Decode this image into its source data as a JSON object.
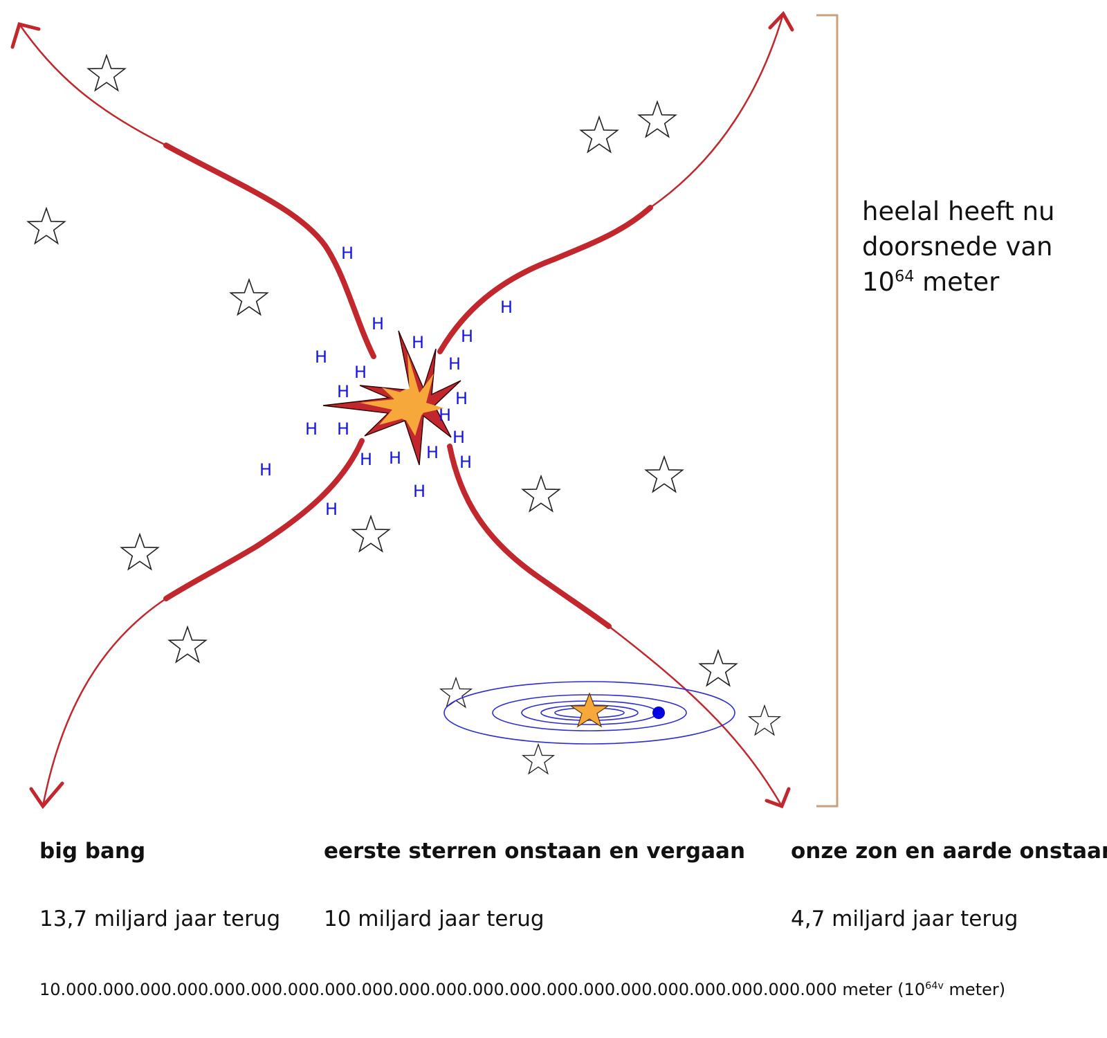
{
  "note": {
    "line1": "heelal heeft nu",
    "line2": "doorsnede van",
    "line3_base": "10",
    "line3_exp": "64",
    "line3_unit": " meter"
  },
  "stages": [
    {
      "title": "big bang",
      "time": "13,7 miljard jaar terug"
    },
    {
      "title": "eerste sterren onstaan en vergaan",
      "time": "10 miljard jaar terug"
    },
    {
      "title": "onze zon en aarde onstaan",
      "time": "4,7 miljard jaar terug"
    }
  ],
  "distance": {
    "number": "10.000.000.000.000.000.000.000.000.000.000.000.000.000.000.000.000.000.000.000.000.000",
    "unit_open": " meter (10",
    "exp": "64v",
    "unit_close": " meter)"
  },
  "hydrogen_symbol": "H",
  "colors": {
    "arrow": "#c1272d",
    "bracket": "#c8a07c",
    "hydrogen": "#1414e6",
    "orbit": "#2b2bd8",
    "sun": "#f7a83b",
    "earth": "#0000e0"
  }
}
